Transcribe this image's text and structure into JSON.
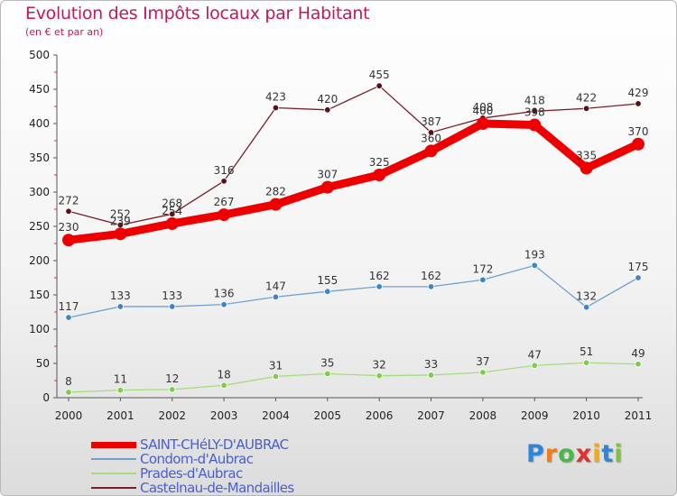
{
  "header": {
    "title": "Evolution des Impôts locaux par Habitant",
    "subtitle": "(en € et par an)"
  },
  "chart_data": {
    "type": "line",
    "title": "Evolution des Impôts locaux par Habitant",
    "subtitle": "(en € et par an)",
    "xlabel": "",
    "ylabel": "",
    "categories": [
      "2000",
      "2001",
      "2002",
      "2003",
      "2004",
      "2005",
      "2006",
      "2007",
      "2008",
      "2009",
      "2010",
      "2011"
    ],
    "ylim": [
      0,
      500
    ],
    "yticks": [
      0,
      50,
      100,
      150,
      200,
      250,
      300,
      350,
      400,
      450,
      500
    ],
    "grid": false,
    "legend_position": "bottom-left",
    "series": [
      {
        "name": "Castelnau-de-Mandailles",
        "color": "#7a1e2a",
        "marker_color": "#5a1018",
        "emphasis": false,
        "values": [
          272,
          252,
          268,
          316,
          423,
          420,
          455,
          387,
          408,
          418,
          422,
          429
        ]
      },
      {
        "name": "Condom-d'Aubrac",
        "color": "#6fa0d0",
        "marker_color": "#3b86c8",
        "emphasis": false,
        "values": [
          117,
          133,
          133,
          136,
          147,
          155,
          162,
          162,
          172,
          193,
          132,
          175
        ]
      },
      {
        "name": "Prades-d'Aubrac",
        "color": "#a6dc7e",
        "marker_color": "#7ecc4a",
        "emphasis": false,
        "values": [
          8,
          11,
          12,
          18,
          31,
          35,
          32,
          33,
          37,
          47,
          51,
          49
        ]
      },
      {
        "name": "SAINT-CHéLY-D'AUBRAC",
        "color": "#ee0000",
        "marker_color": "#ee0000",
        "emphasis": true,
        "values": [
          230,
          239,
          254,
          267,
          282,
          307,
          325,
          360,
          400,
          398,
          335,
          370
        ]
      }
    ]
  },
  "legend": {
    "items": [
      {
        "label": "SAINT-CHéLY-D'AUBRAC",
        "color": "#ee0000",
        "emphasis": true
      },
      {
        "label": "Condom-d'Aubrac",
        "color": "#6fa0d0",
        "emphasis": false
      },
      {
        "label": "Prades-d'Aubrac",
        "color": "#a6dc7e",
        "emphasis": false
      },
      {
        "label": "Castelnau-de-Mandailles",
        "color": "#7a1e2a",
        "emphasis": false
      }
    ]
  },
  "logo": {
    "letters": [
      "P",
      "r",
      "o",
      "x",
      "i",
      "t",
      "i"
    ],
    "colors": [
      "#2e86d6",
      "#f07c1e",
      "#49b84a",
      "#e0312c",
      "#f0a81e",
      "#2e86d6",
      "#7fc241"
    ]
  }
}
